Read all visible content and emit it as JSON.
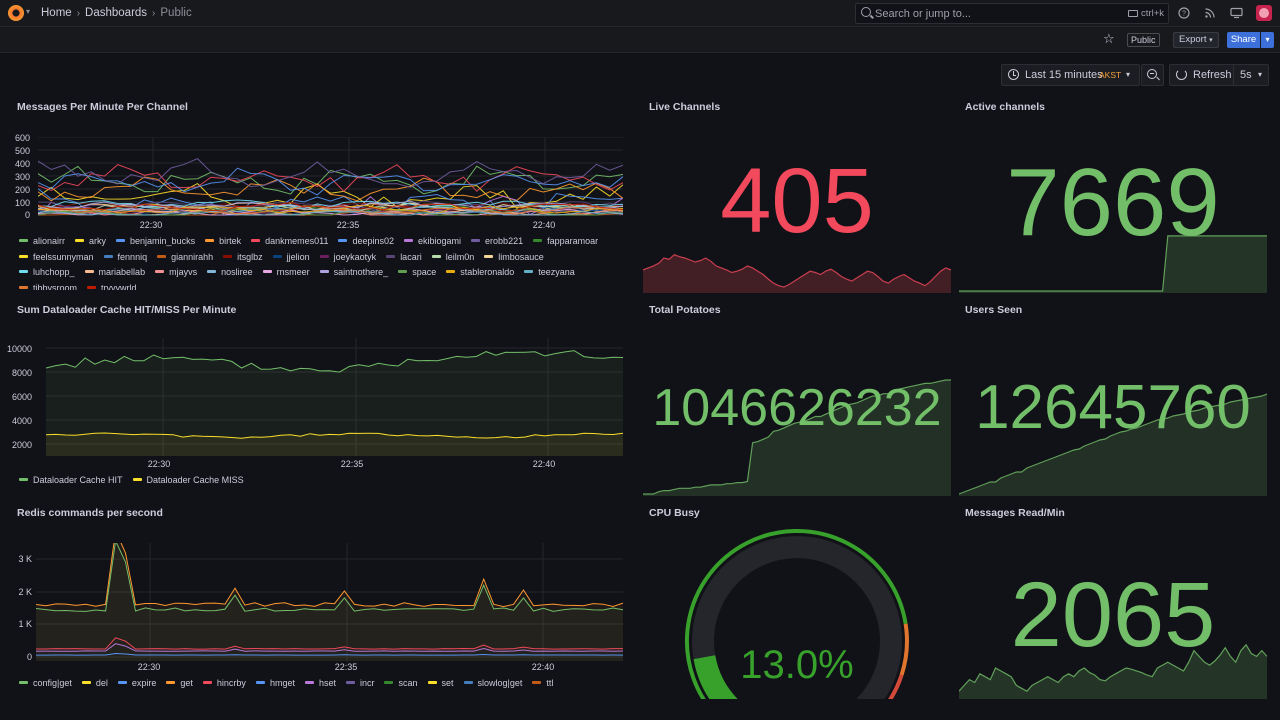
{
  "topbar": {
    "breadcrumbs": [
      "Home",
      "Dashboards",
      "Public"
    ],
    "search_placeholder": "Search or jump to...",
    "search_shortcut": "ctrl+k"
  },
  "toolbar": {
    "public_badge": "Public",
    "export_label": "Export",
    "share_label": "Share"
  },
  "timepicker": {
    "range_label": "Last 15 minutes",
    "timezone": "AKST",
    "refresh_label": "Refresh",
    "refresh_interval": "5s"
  },
  "colors": {
    "stat_red": "#f2495c",
    "stat_green": "#73bf69",
    "accent_blue": "#3d71d9"
  },
  "panels": {
    "messages_per_minute": {
      "title": "Messages Per Minute Per Channel",
      "y_ticks": [
        "600",
        "500",
        "400",
        "300",
        "200",
        "100",
        "0"
      ],
      "x_ticks": [
        "22:30",
        "22:35",
        "22:40"
      ],
      "legend": [
        {
          "name": "alionairr",
          "color": "#73bf69"
        },
        {
          "name": "arky",
          "color": "#fade2a"
        },
        {
          "name": "benjamin_bucks",
          "color": "#5794f2"
        },
        {
          "name": "birtek",
          "color": "#ff9830"
        },
        {
          "name": "dankmemes011",
          "color": "#f2495c"
        },
        {
          "name": "deepins02",
          "color": "#5794f2"
        },
        {
          "name": "ekibiogami",
          "color": "#b877d9"
        },
        {
          "name": "erobb221",
          "color": "#705da0"
        },
        {
          "name": "fapparamoar",
          "color": "#37872d"
        },
        {
          "name": "feelssunnyman",
          "color": "#fade2a"
        },
        {
          "name": "fennniq",
          "color": "#447ebc"
        },
        {
          "name": "giannirahh",
          "color": "#c15c17"
        },
        {
          "name": "itsglbz",
          "color": "#890f02"
        },
        {
          "name": "jjelion",
          "color": "#0a437c"
        },
        {
          "name": "joeykaotyk",
          "color": "#6d1f62"
        },
        {
          "name": "lacari",
          "color": "#584477"
        },
        {
          "name": "leilm0n",
          "color": "#b7dbab"
        },
        {
          "name": "limbosauce",
          "color": "#f4d598"
        },
        {
          "name": "luhchopp_",
          "color": "#70dbed"
        },
        {
          "name": "mariabellab",
          "color": "#f9ba8f"
        },
        {
          "name": "mjayvs",
          "color": "#f29191"
        },
        {
          "name": "nosliree",
          "color": "#82b5d8"
        },
        {
          "name": "rnsmeer",
          "color": "#e5a8e2"
        },
        {
          "name": "saintnothere_",
          "color": "#aea2e0"
        },
        {
          "name": "space",
          "color": "#629e51"
        },
        {
          "name": "stableronaldo",
          "color": "#e5ac0e"
        },
        {
          "name": "teezyana",
          "color": "#64b0c8"
        },
        {
          "name": "tibbysroom",
          "color": "#e0752d"
        },
        {
          "name": "trvyywrld",
          "color": "#bf1b00"
        }
      ]
    },
    "live_channels": {
      "title": "Live Channels",
      "value": "405",
      "spark": [
        0.32,
        0.35,
        0.38,
        0.42,
        0.5,
        0.48,
        0.55,
        0.52,
        0.5,
        0.47,
        0.44,
        0.46,
        0.5,
        0.45,
        0.38,
        0.35,
        0.32,
        0.28,
        0.3,
        0.33,
        0.38,
        0.35,
        0.3,
        0.25,
        0.18,
        0.12,
        0.08,
        0.06,
        0.1,
        0.15,
        0.2,
        0.25,
        0.3,
        0.28,
        0.25,
        0.3,
        0.33,
        0.28,
        0.22,
        0.18,
        0.15,
        0.2,
        0.25,
        0.3,
        0.28,
        0.22,
        0.15,
        0.12,
        0.18,
        0.22,
        0.25,
        0.2,
        0.15,
        0.12,
        0.08,
        0.14,
        0.22,
        0.3,
        0.35,
        0.32
      ]
    },
    "active_channels": {
      "title": "Active channels",
      "value": "7669",
      "spark": [
        0,
        0,
        0,
        0,
        0,
        0,
        0,
        0,
        0,
        0,
        0,
        0,
        0,
        0,
        0,
        0,
        0,
        0,
        0,
        0,
        0,
        0,
        0,
        0,
        0,
        0,
        0,
        0,
        0,
        0,
        0,
        0,
        0,
        0,
        0,
        0,
        0,
        0,
        0,
        0,
        0.95,
        0.95,
        0.95,
        0.95,
        0.95,
        0.95,
        0.95,
        0.95,
        0.95,
        0.95,
        0.95,
        0.95,
        0.95,
        0.95,
        0.95,
        0.95,
        0.95,
        0.95,
        0.95,
        0.95
      ]
    },
    "cache": {
      "title": "Sum Dataloader Cache HIT/MISS Per Minute",
      "y_ticks": [
        "10000",
        "8000",
        "6000",
        "4000",
        "2000"
      ],
      "x_ticks": [
        "22:30",
        "22:35",
        "22:40"
      ],
      "legend": [
        {
          "name": "Dataloader Cache HIT",
          "color": "#73bf69"
        },
        {
          "name": "Dataloader Cache MISS",
          "color": "#fade2a"
        }
      ]
    },
    "total_potatoes": {
      "title": "Total Potatoes",
      "value": "1046626232",
      "spark": [
        0,
        0,
        0,
        0.02,
        0.03,
        0.03,
        0.04,
        0.05,
        0.05,
        0.05,
        0.06,
        0.06,
        0.07,
        0.08,
        0.08,
        0.08,
        0.09,
        0.09,
        0.1,
        0.1,
        0.11,
        0.45,
        0.46,
        0.48,
        0.5,
        0.55,
        0.56,
        0.58,
        0.6,
        0.62,
        0.63,
        0.64,
        0.66,
        0.68,
        0.68,
        0.7,
        0.72,
        0.74,
        0.76,
        0.78,
        0.79,
        0.8,
        0.82,
        0.84,
        0.86,
        0.86,
        0.88,
        0.88,
        0.9,
        0.92,
        0.93,
        0.94,
        0.95,
        0.96,
        0.97,
        0.97,
        0.98,
        0.99,
        1.0,
        1.0
      ]
    },
    "users_seen": {
      "title": "Users Seen",
      "value": "12645760",
      "spark": [
        0,
        0.02,
        0.04,
        0.06,
        0.08,
        0.1,
        0.12,
        0.12,
        0.16,
        0.18,
        0.2,
        0.22,
        0.22,
        0.26,
        0.28,
        0.3,
        0.32,
        0.34,
        0.36,
        0.38,
        0.4,
        0.42,
        0.44,
        0.45,
        0.48,
        0.5,
        0.52,
        0.54,
        0.55,
        0.58,
        0.6,
        0.62,
        0.63,
        0.65,
        0.66,
        0.68,
        0.7,
        0.72,
        0.74,
        0.75,
        0.76,
        0.78,
        0.79,
        0.8,
        0.82,
        0.83,
        0.84,
        0.86,
        0.87,
        0.88,
        0.89,
        0.9,
        0.92,
        0.93,
        0.94,
        0.95,
        0.96,
        0.97,
        0.98,
        1.0
      ]
    },
    "redis": {
      "title": "Redis commands per second",
      "y_ticks": [
        "3 K",
        "2 K",
        "1 K",
        "0"
      ],
      "x_ticks": [
        "22:30",
        "22:35",
        "22:40"
      ],
      "legend": [
        {
          "name": "config|get",
          "color": "#73bf69"
        },
        {
          "name": "del",
          "color": "#fade2a"
        },
        {
          "name": "expire",
          "color": "#5794f2"
        },
        {
          "name": "get",
          "color": "#ff9830"
        },
        {
          "name": "hincrby",
          "color": "#f2495c"
        },
        {
          "name": "hmget",
          "color": "#5794f2"
        },
        {
          "name": "hset",
          "color": "#b877d9"
        },
        {
          "name": "incr",
          "color": "#705da0"
        },
        {
          "name": "scan",
          "color": "#37872d"
        },
        {
          "name": "set",
          "color": "#fade2a"
        },
        {
          "name": "slowlog|get",
          "color": "#447ebc"
        },
        {
          "name": "ttl",
          "color": "#c15c17"
        }
      ]
    },
    "cpu_busy": {
      "title": "CPU Busy",
      "value": "13.0%",
      "percent": 13.0
    },
    "messages_read": {
      "title": "Messages Read/Min",
      "value": "2065",
      "spark": [
        0.1,
        0.2,
        0.3,
        0.25,
        0.4,
        0.35,
        0.3,
        0.5,
        0.45,
        0.4,
        0.35,
        0.2,
        0.15,
        0.1,
        0.2,
        0.25,
        0.3,
        0.35,
        0.3,
        0.25,
        0.35,
        0.4,
        0.35,
        0.45,
        0.5,
        0.42,
        0.38,
        0.3,
        0.28,
        0.35,
        0.4,
        0.45,
        0.5,
        0.48,
        0.45,
        0.42,
        0.38,
        0.35,
        0.5,
        0.55,
        0.6,
        0.55,
        0.5,
        0.45,
        0.6,
        0.8,
        0.7,
        0.6,
        0.55,
        0.62,
        0.72,
        0.85,
        0.7,
        0.6,
        0.8,
        0.9,
        0.75,
        0.7,
        0.8,
        0.7
      ]
    }
  }
}
